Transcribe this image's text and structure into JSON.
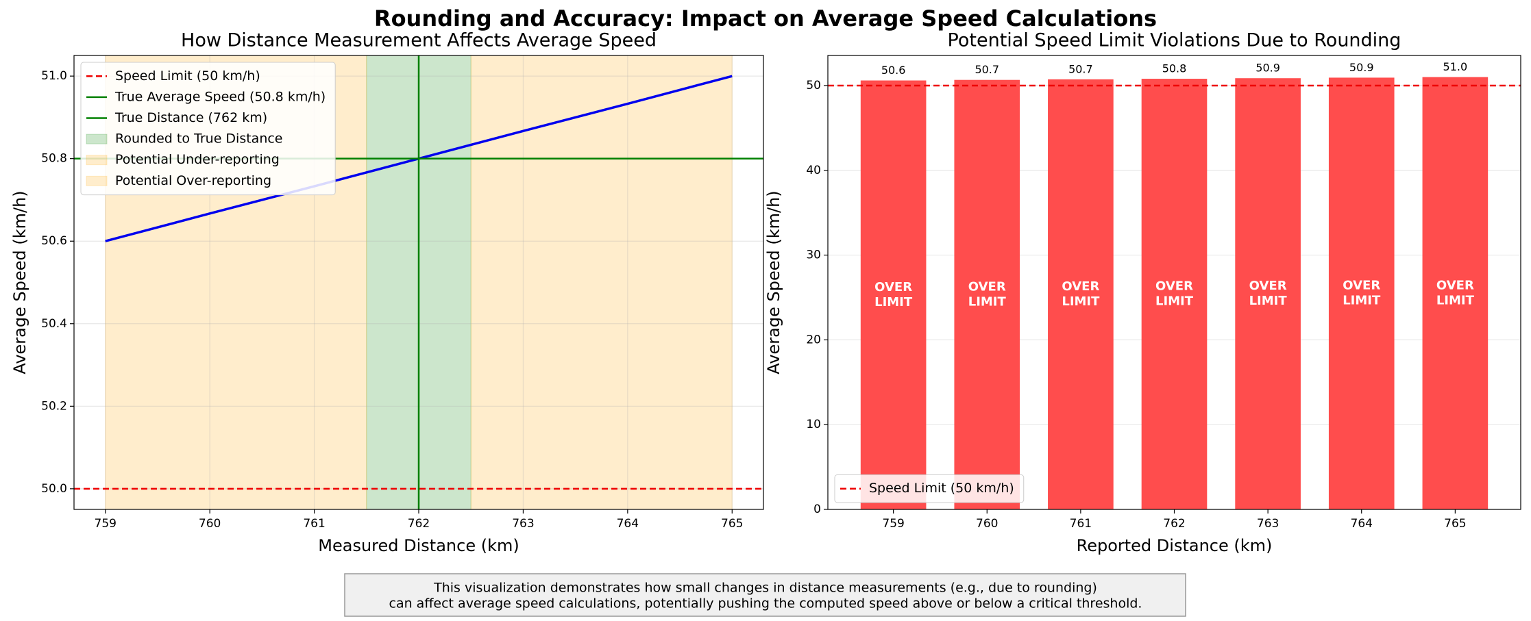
{
  "title": "Rounding and Accuracy: Impact on Average Speed Calculations",
  "caption_lines": [
    "This visualization demonstrates how small changes in distance measurements (e.g., due to rounding)",
    "can affect average speed calculations, potentially pushing the computed speed above or below a critical threshold."
  ],
  "chart_data": [
    {
      "type": "line",
      "title": "How Distance Measurement Affects Average Speed",
      "xlabel": "Measured Distance (km)",
      "ylabel": "Average Speed (km/h)",
      "x": [
        759,
        760,
        761,
        762,
        763,
        764,
        765
      ],
      "values": [
        50.6,
        50.667,
        50.733,
        50.8,
        50.867,
        50.933,
        51.0
      ],
      "color": "#0000ee",
      "hlines": [
        {
          "y": 50,
          "name": "Speed Limit (50 km/h)",
          "color": "#ee0000",
          "dashed": true
        },
        {
          "y": 50.8,
          "name": "True Average Speed (50.8 km/h)",
          "color": "#008000",
          "dashed": false
        }
      ],
      "vlines": [
        {
          "x": 762,
          "name": "True Distance (762 km)",
          "color": "#008000",
          "dashed": false
        }
      ],
      "spans": [
        {
          "x": [
            761.5,
            762.5
          ],
          "name": "Rounded to True Distance",
          "color": "#008000",
          "alpha": 0.2
        },
        {
          "x": [
            759,
            761.5
          ],
          "name": "Potential Under-reporting",
          "color": "#ffa500",
          "alpha": 0.2
        },
        {
          "x": [
            762.5,
            765
          ],
          "name": "Potential Over-reporting",
          "color": "#ffa500",
          "alpha": 0.2
        }
      ],
      "xlim": [
        758.7,
        765.3
      ],
      "ylim": [
        49.95,
        51.05
      ],
      "xticks": [
        759,
        760,
        761,
        762,
        763,
        764,
        765
      ],
      "yticks": [
        {
          "value": 50.0,
          "label": "50.0"
        },
        {
          "value": 50.2,
          "label": "50.2"
        },
        {
          "value": 50.4,
          "label": "50.4"
        },
        {
          "value": 50.6,
          "label": "50.6"
        },
        {
          "value": 50.8,
          "label": "50.8"
        },
        {
          "value": 51.0,
          "label": "51.0"
        }
      ],
      "grid": "both",
      "legend": "upper left"
    },
    {
      "type": "bar",
      "title": "Potential Speed Limit Violations Due to Rounding",
      "xlabel": "Reported Distance (km)",
      "ylabel": "Average Speed (km/h)",
      "categories": [
        "759",
        "760",
        "761",
        "762",
        "763",
        "764",
        "765"
      ],
      "values": [
        50.6,
        50.667,
        50.733,
        50.8,
        50.867,
        50.933,
        51.0
      ],
      "value_labels": [
        "50.6",
        "50.7",
        "50.7",
        "50.8",
        "50.9",
        "50.9",
        "51.0"
      ],
      "bar_label_lines": [
        "OVER",
        "LIMIT"
      ],
      "color": "#ff4d4d",
      "hlines": [
        {
          "y": 50,
          "name": "Speed Limit (50 km/h)",
          "color": "#ee0000",
          "dashed": true
        }
      ],
      "ylim": [
        0,
        53.55
      ],
      "yticks": [
        0,
        10,
        20,
        30,
        40,
        50
      ],
      "grid": "y",
      "legend": "lower left"
    }
  ]
}
